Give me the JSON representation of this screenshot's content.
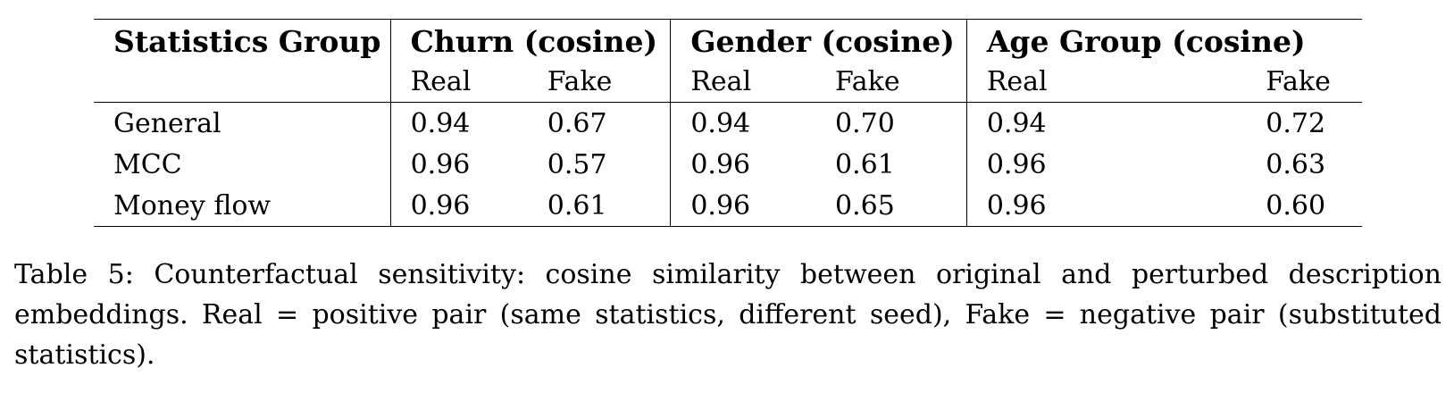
{
  "table": {
    "header": {
      "stub": "Statistics Group",
      "groups": [
        "Churn (cosine)",
        "Gender (cosine)",
        "Age Group (cosine)"
      ],
      "subcols": [
        "Real",
        "Fake",
        "Real",
        "Fake",
        "Real",
        "Fake"
      ]
    },
    "rows": [
      {
        "label": "General",
        "values": [
          "0.94",
          "0.67",
          "0.94",
          "0.70",
          "0.94",
          "0.72"
        ]
      },
      {
        "label": "MCC",
        "values": [
          "0.96",
          "0.57",
          "0.96",
          "0.61",
          "0.96",
          "0.63"
        ]
      },
      {
        "label": "Money flow",
        "values": [
          "0.96",
          "0.61",
          "0.96",
          "0.65",
          "0.96",
          "0.60"
        ]
      }
    ]
  },
  "caption": "Table 5: Counterfactual sensitivity: cosine similarity between original and perturbed description embeddings. Real = positive pair (same statistics, different seed), Fake = negative pair (substituted statistics)."
}
